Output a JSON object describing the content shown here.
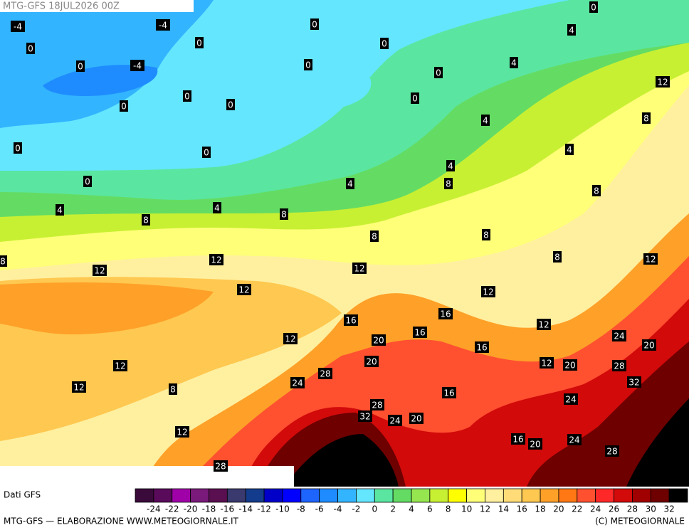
{
  "header": {
    "title": "MTG-GFS 18JUL2026 00Z"
  },
  "contour_labels": [
    -4,
    -4,
    0,
    0,
    0,
    0,
    0,
    4,
    0,
    -4,
    0,
    4,
    0,
    12,
    0,
    0,
    0,
    0,
    8,
    4,
    0,
    0,
    4,
    4,
    0,
    4,
    8,
    8,
    4,
    4,
    8,
    8,
    8,
    8,
    8,
    12,
    12,
    12,
    12,
    8,
    12,
    12,
    16,
    16,
    12,
    12,
    20,
    16,
    16,
    24,
    20,
    20,
    12,
    20,
    12,
    28,
    28,
    32,
    12,
    8,
    24,
    16,
    24,
    28,
    32,
    24,
    20,
    12,
    16,
    20,
    24,
    28,
    28
  ],
  "legend": {
    "title": "Dati GFS",
    "colors": [
      "#3a0a3a",
      "#5a0a5a",
      "#a000a8",
      "#7a1a7a",
      "#5a1050",
      "#3a3a6e",
      "#143c8c",
      "#0000c8",
      "#0000ff",
      "#1e64ff",
      "#1e8cff",
      "#32b4ff",
      "#64e6ff",
      "#5ae6a0",
      "#64dc64",
      "#96e650",
      "#c8f032",
      "#ffff00",
      "#ffff78",
      "#fff0a0",
      "#ffdc78",
      "#ffc850",
      "#ffa028",
      "#ff7814",
      "#ff5030",
      "#ff2828",
      "#d20a0a",
      "#a00000",
      "#6e0000",
      "#000000"
    ],
    "ticks": [
      -24,
      -22,
      -20,
      -18,
      -16,
      -14,
      -12,
      -10,
      -8,
      -6,
      -4,
      -2,
      0,
      2,
      4,
      6,
      8,
      10,
      12,
      14,
      16,
      18,
      20,
      22,
      24,
      26,
      28,
      30,
      32
    ]
  },
  "footer": {
    "left": "MTG-GFS — ELABORAZIONE WWW.METEOGIORNALE.IT",
    "right": "(C) METEOGIORNALE"
  }
}
